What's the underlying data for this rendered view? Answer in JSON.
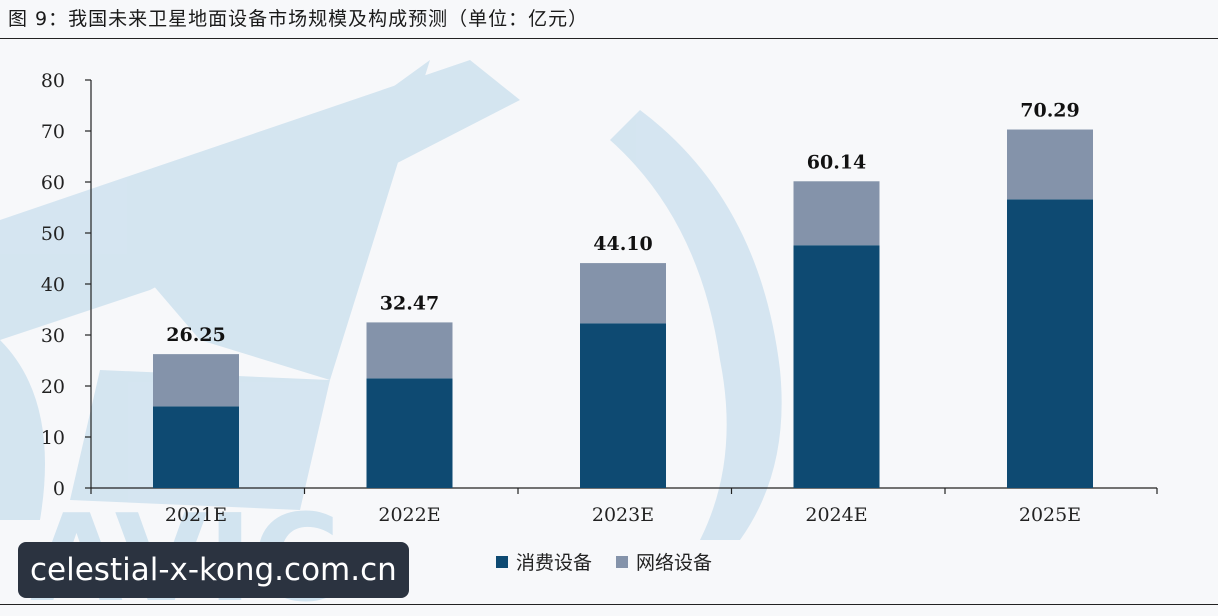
{
  "figure": {
    "title": "图 9：我国未来卫星地面设备市场规模及构成预测（单位：亿元）"
  },
  "watermark": {
    "brand_text": "AVIC",
    "site_badge": "celestial-x-kong.com.cn"
  },
  "colors": {
    "consumer": "#0e4a72",
    "network": "#8493aa",
    "axis": "#222222",
    "watermark": "#cfe2ef"
  },
  "chart_data": {
    "type": "bar",
    "stacked": true,
    "title": "",
    "xlabel": "",
    "ylabel": "",
    "categories": [
      "2021E",
      "2022E",
      "2023E",
      "2024E",
      "2025E"
    ],
    "series": [
      {
        "name": "消费设备",
        "values": [
          16.0,
          21.5,
          32.3,
          47.6,
          56.6
        ]
      },
      {
        "name": "网络设备",
        "values": [
          10.25,
          10.97,
          11.8,
          12.54,
          13.69
        ]
      }
    ],
    "totals": [
      26.25,
      32.47,
      44.1,
      60.14,
      70.29
    ],
    "total_labels": [
      "26.25",
      "32.47",
      "44.10",
      "60.14",
      "70.29"
    ],
    "ylim": [
      0,
      80
    ],
    "yticks": [
      0,
      10,
      20,
      30,
      40,
      50,
      60,
      70,
      80
    ],
    "grid": false,
    "legend_position": "bottom"
  }
}
